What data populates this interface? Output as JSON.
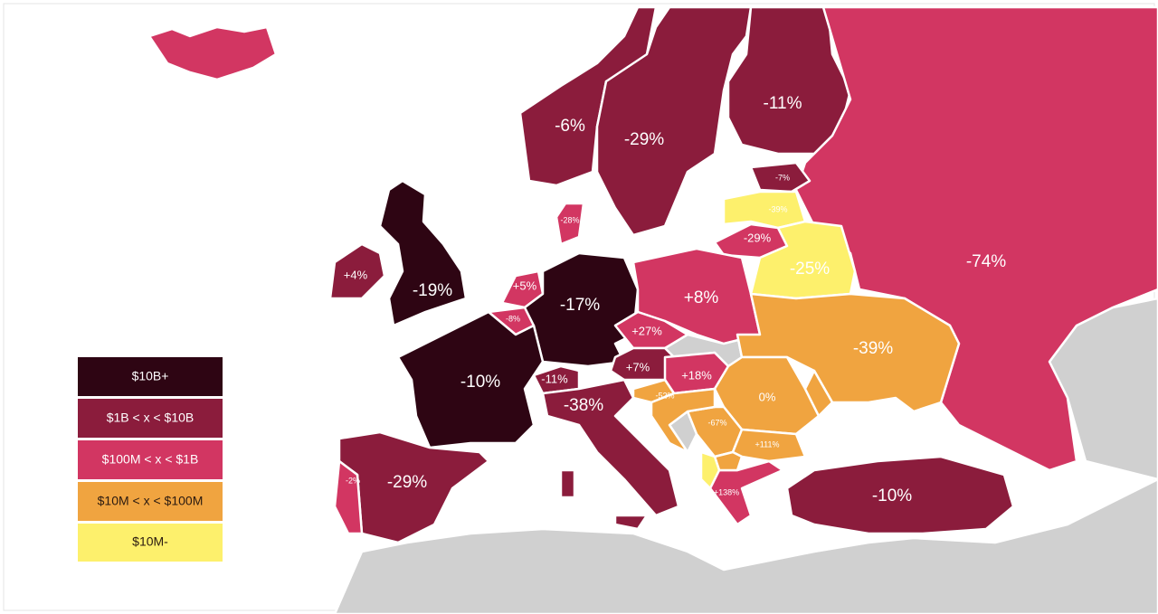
{
  "regions": [
    {
      "label": "-6%",
      "color": "#8b1c3c"
    },
    {
      "label": "-29%",
      "color": "#8b1c3c"
    },
    {
      "label": "-11%",
      "color": "#8b1c3c"
    },
    {
      "label": "-74%",
      "color": "#d23662"
    },
    {
      "label": "-7%",
      "color": "#8b1c3c"
    },
    {
      "label": "-39%",
      "color": "#fdf06c"
    },
    {
      "label": "-29%",
      "color": "#d23662"
    },
    {
      "label": "-25%",
      "color": "#fdf06c"
    },
    {
      "label": "-19%",
      "color": "#2e0513"
    },
    {
      "label": "+4%",
      "color": "#8b1c3c"
    },
    {
      "label": "-28%",
      "color": "#d23662"
    },
    {
      "label": "+5%",
      "color": "#d23662"
    },
    {
      "label": "-8%",
      "color": "#d23662"
    },
    {
      "label": "-17%",
      "color": "#2e0513"
    },
    {
      "label": "+8%",
      "color": "#d23662"
    },
    {
      "label": "-10%",
      "color": "#2e0513"
    },
    {
      "label": "+27%",
      "color": "#d23662"
    },
    {
      "label": "+7%",
      "color": "#8b1c3c"
    },
    {
      "label": "-11%",
      "color": "#8b1c3c"
    },
    {
      "label": "+18%",
      "color": "#d23662"
    },
    {
      "label": "-38%",
      "color": "#8b1c3c"
    },
    {
      "label": "-52%",
      "color": "#f0a440"
    },
    {
      "label": "-39%",
      "color": "#f0a440"
    },
    {
      "label": "0%",
      "color": "#f0a440"
    },
    {
      "label": "-67%",
      "color": "#f0a440"
    },
    {
      "label": "+111%",
      "color": "#f0a440"
    },
    {
      "label": "-29%",
      "color": "#8b1c3c"
    },
    {
      "label": "-2%",
      "color": "#d23662"
    },
    {
      "label": "+138%",
      "color": "#d23662"
    },
    {
      "label": "-10%",
      "color": "#8b1c3c"
    },
    {
      "color": "#d23662"
    },
    {
      "color": "#f0a440"
    },
    {
      "color": "#f0a440"
    },
    {
      "color": "#f0a440"
    },
    {
      "color": "#fdf06c"
    }
  ],
  "legend": [
    {
      "label": "$10B+",
      "color": "#2e0513"
    },
    {
      "label": "$1B < x < $10B",
      "color": "#8b1c3c"
    },
    {
      "label": "$100M < x < $1B",
      "color": "#d23662"
    },
    {
      "label": "$10M < x < $100M",
      "color": "#f0a440"
    },
    {
      "label": "$10M-",
      "color": "#fdf06c"
    }
  ]
}
